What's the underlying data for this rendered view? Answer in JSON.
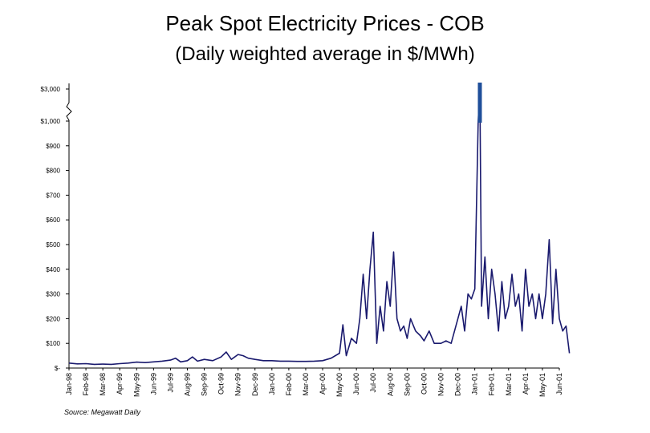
{
  "chart_data": {
    "type": "line",
    "title": "Peak Spot Electricity Prices - COB",
    "subtitle": "(Daily weighted average in $/MWh)",
    "source": "Source: Megawatt Daily",
    "line_color": "#1a1a6e",
    "spike_color": "#1f4f9a",
    "y_tick_labels": [
      "$-",
      "$100",
      "$200",
      "$300",
      "$400",
      "$500",
      "$600",
      "$700",
      "$800",
      "$900",
      "$1,000",
      "$3,000"
    ],
    "y_tick_values": [
      0,
      100,
      200,
      300,
      400,
      500,
      600,
      700,
      800,
      900,
      1000,
      3000
    ],
    "y_axis_break": "between $1,000 and $3,000",
    "x_tick_labels": [
      "Jan-98",
      "Feb-98",
      "Mar-98",
      "Apr-99",
      "May-99",
      "Jun-99",
      "Jul-99",
      "Aug-99",
      "Sep-99",
      "Oct-99",
      "Nov-99",
      "Dec-99",
      "Jan-00",
      "Feb-00",
      "Mar-00",
      "Apr-00",
      "May-00",
      "Jun-00",
      "Jul-00",
      "Aug-00",
      "Sep-00",
      "Oct-00",
      "Nov-00",
      "Dec-00",
      "Jan-01",
      "Feb-01",
      "Mar-01",
      "Apr-01",
      "May-01",
      "Jun-01"
    ],
    "series": [
      {
        "name": "COB peak daily weighted average ($/MWh)",
        "points": [
          [
            0.0,
            20
          ],
          [
            0.5,
            17
          ],
          [
            1.0,
            18
          ],
          [
            1.5,
            15
          ],
          [
            2.0,
            16
          ],
          [
            2.5,
            15
          ],
          [
            3.0,
            18
          ],
          [
            3.5,
            20
          ],
          [
            4.0,
            24
          ],
          [
            4.5,
            22
          ],
          [
            5.0,
            25
          ],
          [
            5.5,
            28
          ],
          [
            6.0,
            32
          ],
          [
            6.3,
            40
          ],
          [
            6.6,
            25
          ],
          [
            7.0,
            30
          ],
          [
            7.3,
            45
          ],
          [
            7.6,
            28
          ],
          [
            8.0,
            35
          ],
          [
            8.5,
            30
          ],
          [
            9.0,
            45
          ],
          [
            9.3,
            65
          ],
          [
            9.6,
            35
          ],
          [
            10.0,
            55
          ],
          [
            10.3,
            50
          ],
          [
            10.6,
            40
          ],
          [
            11.0,
            35
          ],
          [
            11.5,
            30
          ],
          [
            12.0,
            30
          ],
          [
            12.5,
            28
          ],
          [
            13.0,
            28
          ],
          [
            13.5,
            27
          ],
          [
            14.0,
            27
          ],
          [
            14.5,
            28
          ],
          [
            15.0,
            30
          ],
          [
            15.5,
            40
          ],
          [
            16.0,
            60
          ],
          [
            16.2,
            175
          ],
          [
            16.4,
            50
          ],
          [
            16.7,
            120
          ],
          [
            17.0,
            100
          ],
          [
            17.2,
            200
          ],
          [
            17.4,
            380
          ],
          [
            17.6,
            200
          ],
          [
            17.8,
            400
          ],
          [
            18.0,
            550
          ],
          [
            18.2,
            100
          ],
          [
            18.4,
            250
          ],
          [
            18.6,
            150
          ],
          [
            18.8,
            350
          ],
          [
            19.0,
            250
          ],
          [
            19.2,
            470
          ],
          [
            19.4,
            200
          ],
          [
            19.6,
            150
          ],
          [
            19.8,
            170
          ],
          [
            20.0,
            120
          ],
          [
            20.2,
            200
          ],
          [
            20.5,
            150
          ],
          [
            20.8,
            130
          ],
          [
            21.0,
            110
          ],
          [
            21.3,
            150
          ],
          [
            21.6,
            100
          ],
          [
            22.0,
            100
          ],
          [
            22.3,
            110
          ],
          [
            22.6,
            100
          ],
          [
            23.0,
            200
          ],
          [
            23.2,
            250
          ],
          [
            23.4,
            150
          ],
          [
            23.6,
            300
          ],
          [
            23.8,
            280
          ],
          [
            24.0,
            320
          ],
          [
            24.2,
            1000
          ],
          [
            24.3,
            3000
          ],
          [
            24.4,
            250
          ],
          [
            24.6,
            450
          ],
          [
            24.8,
            200
          ],
          [
            25.0,
            400
          ],
          [
            25.2,
            300
          ],
          [
            25.4,
            150
          ],
          [
            25.6,
            350
          ],
          [
            25.8,
            200
          ],
          [
            26.0,
            250
          ],
          [
            26.2,
            380
          ],
          [
            26.4,
            250
          ],
          [
            26.6,
            300
          ],
          [
            26.8,
            150
          ],
          [
            27.0,
            400
          ],
          [
            27.2,
            250
          ],
          [
            27.4,
            300
          ],
          [
            27.6,
            200
          ],
          [
            27.8,
            300
          ],
          [
            28.0,
            200
          ],
          [
            28.2,
            300
          ],
          [
            28.4,
            520
          ],
          [
            28.6,
            180
          ],
          [
            28.8,
            400
          ],
          [
            29.0,
            200
          ],
          [
            29.2,
            150
          ],
          [
            29.4,
            170
          ],
          [
            29.6,
            60
          ]
        ]
      }
    ]
  }
}
